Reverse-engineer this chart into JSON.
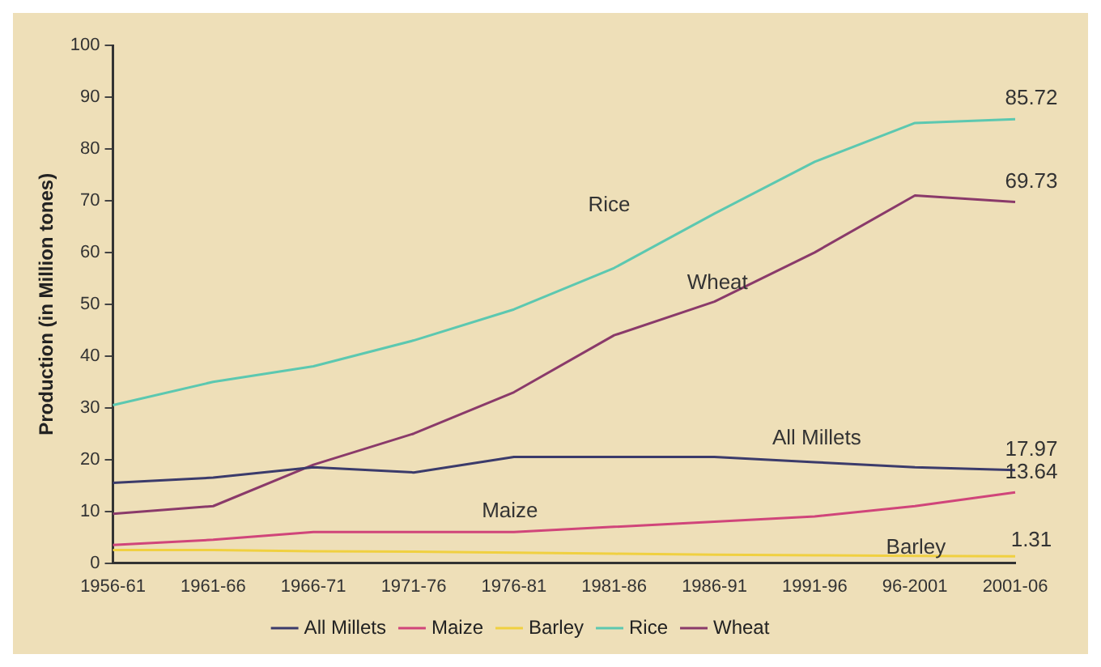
{
  "chart_data": {
    "type": "line",
    "ylabel": "Production (in Million tones)",
    "categories": [
      "1956-61",
      "1961-66",
      "1966-71",
      "1971-76",
      "1976-81",
      "1981-86",
      "1986-91",
      "1991-96",
      "96-2001",
      "2001-06"
    ],
    "series": [
      {
        "name": "All Millets",
        "color": "#3b3b6b",
        "values": [
          15.5,
          16.5,
          18.5,
          17.5,
          20.5,
          20.5,
          20.5,
          19.5,
          18.5,
          17.97
        ],
        "value_labels": [
          null,
          null,
          null,
          null,
          null,
          null,
          null,
          null,
          null,
          "17.97"
        ]
      },
      {
        "name": "Maize",
        "color": "#d0457a",
        "values": [
          3.5,
          4.5,
          6,
          6,
          6,
          7,
          8,
          9,
          11,
          13.64
        ],
        "value_labels": [
          null,
          null,
          null,
          null,
          null,
          null,
          null,
          null,
          null,
          "13.64"
        ]
      },
      {
        "name": "Barley",
        "color": "#f0d040",
        "values": [
          2.5,
          2.5,
          2.3,
          2.2,
          2,
          1.8,
          1.6,
          1.5,
          1.4,
          1.31
        ],
        "value_labels": [
          null,
          null,
          null,
          null,
          null,
          null,
          null,
          null,
          null,
          "1.31"
        ]
      },
      {
        "name": "Rice",
        "color": "#5cc8b0",
        "values": [
          30.5,
          35,
          38,
          43,
          49,
          57,
          67.5,
          77.5,
          85,
          85.72
        ],
        "value_labels": [
          null,
          null,
          null,
          null,
          null,
          null,
          null,
          null,
          null,
          "85.72"
        ]
      },
      {
        "name": "Wheat",
        "color": "#8a3a6a",
        "values": [
          9.5,
          11,
          19,
          25,
          33,
          44,
          50.5,
          60,
          71,
          69.73
        ],
        "value_labels": [
          null,
          null,
          null,
          null,
          null,
          null,
          null,
          null,
          null,
          "69.73"
        ]
      }
    ],
    "annotations": [
      "Rice",
      "Wheat",
      "All Millets",
      "Maize",
      "Barley"
    ],
    "ylim": [
      0,
      100
    ],
    "yticks": [
      0,
      10,
      20,
      30,
      40,
      50,
      60,
      70,
      80,
      90,
      100
    ],
    "grid": false,
    "legend": "bottom",
    "marker": "none",
    "line_style": "solid"
  }
}
